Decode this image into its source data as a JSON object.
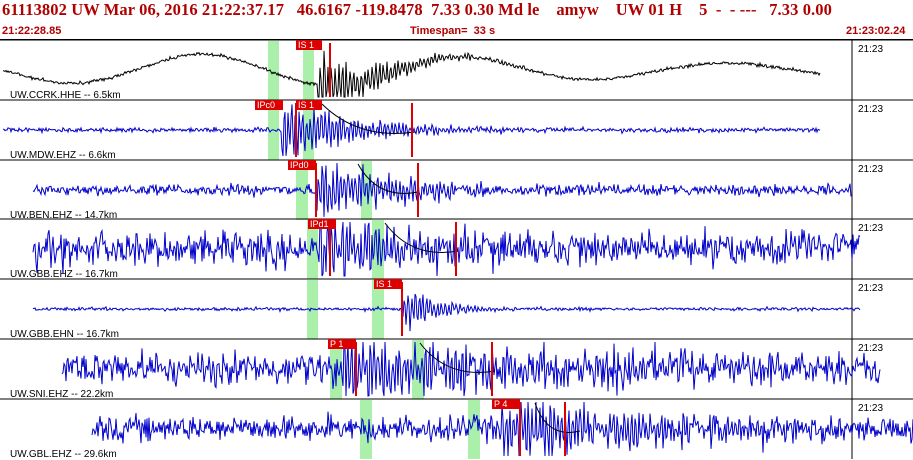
{
  "header": {
    "title": "61113802 UW Mar 06, 2016 21:22:37.17   46.6167 -119.8478  7.33 0.30 Md le    amyw    UW 01 H    5  -  - ---   7.33 0.00",
    "start_time": "21:22:28.85",
    "timespan": "Timespan=  33 s",
    "end_time": "21:23:02.24"
  },
  "colors": {
    "header_text": "#b00000",
    "trace_first": "#000000",
    "trace": "#0000cc",
    "pick_box": "#dd0000",
    "window_band": "#aaf0aa",
    "coda_fit": "#000000"
  },
  "channels": [
    {
      "label": "UW.CCRK.HHE -- 6.5km",
      "time_label": "21:23",
      "picks": [
        "IS 1"
      ]
    },
    {
      "label": "UW.MDW.EHZ -- 6.6km",
      "time_label": "21:23",
      "picks": [
        "IPc0",
        "IS 1"
      ]
    },
    {
      "label": "UW.BEN.EHZ -- 14.7km",
      "time_label": "21:23",
      "picks": [
        "IPd0"
      ]
    },
    {
      "label": "UW.GBB.EHZ -- 16.7km",
      "time_label": "21:23",
      "picks": [
        "IPd1"
      ]
    },
    {
      "label": "UW.GBB.EHN -- 16.7km",
      "time_label": "21:23",
      "picks": [
        "IS 1"
      ]
    },
    {
      "label": "UW.SNI.EHZ -- 22.2km",
      "time_label": "21:23",
      "picks": [
        "P 1"
      ]
    },
    {
      "label": "UW.GBL.EHZ -- 29.6km",
      "time_label": "21:23",
      "picks": [
        "P 4"
      ]
    }
  ]
}
